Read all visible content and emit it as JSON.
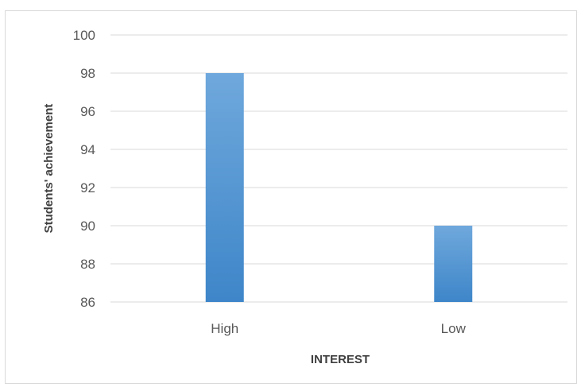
{
  "chart_data": {
    "type": "bar",
    "title": "",
    "xlabel": "INTEREST",
    "ylabel": "Students' achievement",
    "categories": [
      "High",
      "Low"
    ],
    "values": [
      98,
      90
    ],
    "ylim": [
      86,
      100
    ],
    "yticks": [
      86,
      88,
      90,
      92,
      94,
      96,
      98,
      100
    ],
    "grid": true,
    "legend": "none",
    "bar_color_top": "#6fa8dc",
    "bar_color_bottom": "#3e86c9",
    "gridline_color": "#d9d9d9"
  }
}
